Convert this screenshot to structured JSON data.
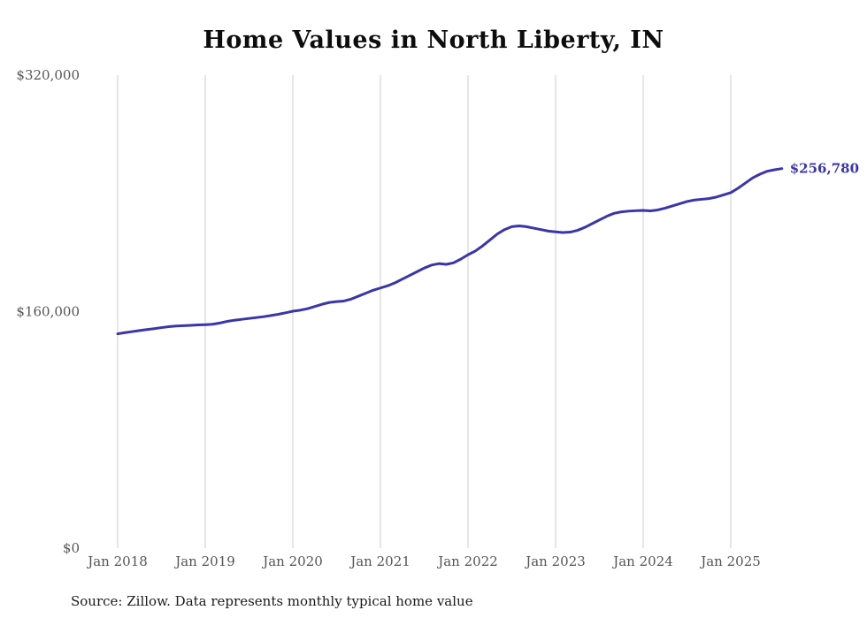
{
  "title": "Home Values in North Liberty, IN",
  "source_note": "Source: Zillow. Data represents monthly typical home value",
  "end_value_label": "$256,780",
  "colors": {
    "line": "#3a35ab",
    "grid": "#cccccc",
    "axis_text": "#555555",
    "title_text": "#0d0d0d"
  },
  "chart_data": {
    "type": "line",
    "title": "Home Values in North Liberty, IN",
    "xlabel": "",
    "ylabel": "",
    "ylim": [
      0,
      320000
    ],
    "grid": "vertical-only",
    "legend": false,
    "frequency": "monthly",
    "x_start": "Jan 2018",
    "x_tick_labels": [
      "Jan 2018",
      "Jan 2019",
      "Jan 2020",
      "Jan 2021",
      "Jan 2022",
      "Jan 2023",
      "Jan 2024",
      "Jan 2025"
    ],
    "y_tick_labels": [
      "$0",
      "$160,000",
      "$320,000"
    ],
    "y_tick_values": [
      0,
      160000,
      320000
    ],
    "series": [
      {
        "name": "Typical home value",
        "values": [
          145000,
          145800,
          146500,
          147200,
          147900,
          148500,
          149200,
          149800,
          150300,
          150500,
          150700,
          151000,
          151200,
          151500,
          152300,
          153400,
          154200,
          154800,
          155400,
          156000,
          156600,
          157400,
          158200,
          159200,
          160300,
          161000,
          162000,
          163500,
          165000,
          166200,
          166800,
          167200,
          168500,
          170500,
          172500,
          174500,
          176000,
          177500,
          179500,
          182000,
          184500,
          187000,
          189500,
          191500,
          192500,
          192000,
          193000,
          195500,
          198500,
          201000,
          204500,
          208500,
          212500,
          215500,
          217500,
          218000,
          217500,
          216500,
          215500,
          214500,
          214000,
          213500,
          213800,
          215000,
          217000,
          219500,
          222000,
          224500,
          226500,
          227500,
          228000,
          228300,
          228500,
          228200,
          228800,
          230000,
          231500,
          233000,
          234500,
          235500,
          236000,
          236500,
          237500,
          239000,
          240500,
          243500,
          247000,
          250500,
          253000,
          255000,
          256000,
          256780
        ]
      }
    ],
    "final_value": 256780,
    "final_value_label": "$256,780"
  }
}
